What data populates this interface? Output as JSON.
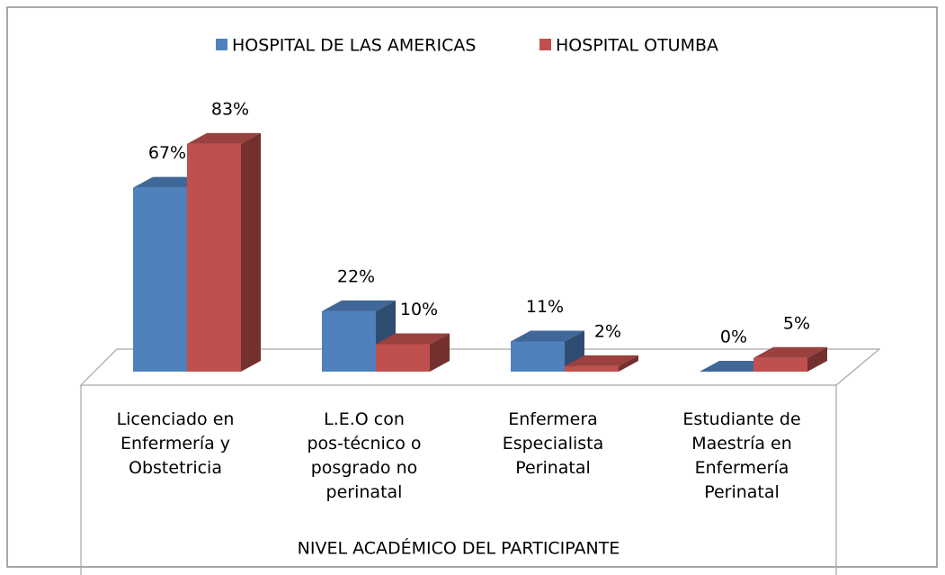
{
  "chart_data": {
    "type": "bar3d",
    "categories": [
      "Licenciado en Enfermería y Obstetricia",
      "L.E.O con pos-técnico o posgrado no perinatal",
      "Enfermera Especialista Perinatal",
      "Estudiante de Maestría en Enfermería Perinatal"
    ],
    "series": [
      {
        "name": "HOSPITAL DE LAS AMERICAS",
        "color": "#4f81bd",
        "values": [
          67,
          22,
          11,
          0
        ],
        "value_labels": [
          "67%",
          "22%",
          "11%",
          "0%"
        ]
      },
      {
        "name": "HOSPITAL OTUMBA",
        "color": "#c0504d",
        "values": [
          83,
          10,
          2,
          5
        ],
        "value_labels": [
          "83%",
          "10%",
          "2%",
          "5%"
        ]
      }
    ],
    "x_label": "NIVEL ACADÉMICO DEL PARTICIPANTE",
    "legend": "top"
  }
}
